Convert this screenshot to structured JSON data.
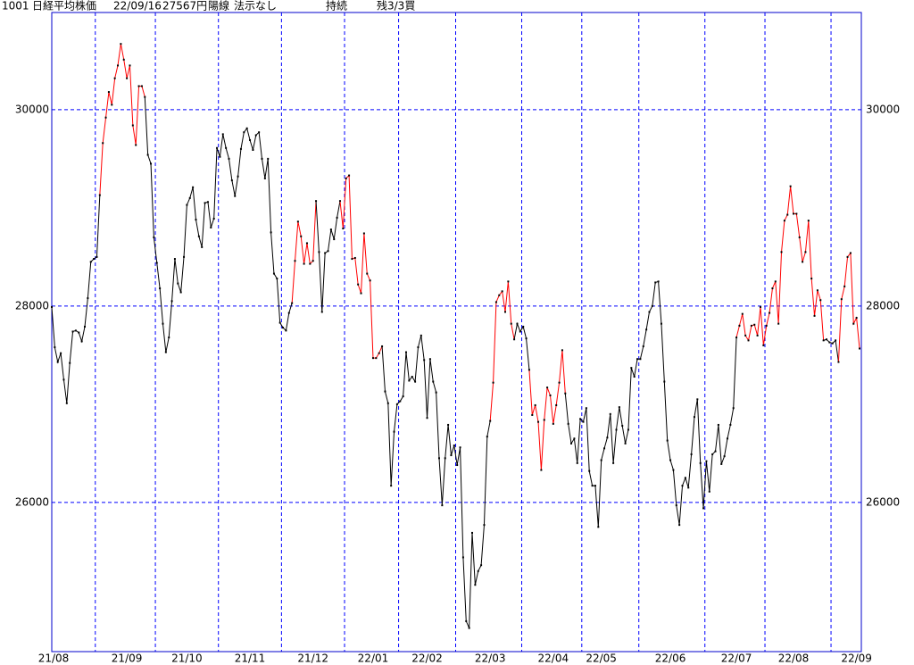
{
  "chart_data": {
    "type": "line",
    "header": [
      "1001",
      "日経平均株価",
      "22/09/16",
      "27567円",
      "陽線",
      "法示なし",
      "持続",
      "残3/3買"
    ],
    "values": [
      27990,
      27580,
      27430,
      27520,
      27250,
      27010,
      27420,
      27740,
      27750,
      27730,
      27640,
      27790,
      28080,
      28450,
      28480,
      28500,
      29130,
      29660,
      29920,
      30180,
      30050,
      30320,
      30450,
      30670,
      30510,
      30320,
      30450,
      29840,
      29640,
      30240,
      30240,
      30130,
      29540,
      29450,
      28700,
      28440,
      28180,
      27820,
      27530,
      27680,
      28050,
      28480,
      28230,
      28140,
      28500,
      29030,
      29100,
      29210,
      28880,
      28710,
      28600,
      29050,
      29060,
      28800,
      28890,
      29610,
      29520,
      29750,
      29610,
      29500,
      29280,
      29120,
      29320,
      29600,
      29770,
      29810,
      29690,
      29590,
      29740,
      29770,
      29500,
      29300,
      29500,
      28750,
      28330,
      28280,
      27830,
      27780,
      27750,
      27930,
      28030,
      28460,
      28860,
      28710,
      28430,
      28640,
      28430,
      28460,
      29070,
      28550,
      27940,
      28540,
      28560,
      28780,
      28680,
      28900,
      29070,
      28790,
      29300,
      29330,
      28480,
      28490,
      28220,
      28130,
      28740,
      28330,
      28260,
      27470,
      27470,
      27520,
      27590,
      27130,
      27010,
      26170,
      26720,
      27000,
      27030,
      27080,
      27530,
      27240,
      27280,
      27230,
      27580,
      27700,
      27450,
      26860,
      27460,
      27230,
      27120,
      26450,
      25970,
      26450,
      26790,
      26480,
      26580,
      26380,
      26560,
      25440,
      24790,
      24720,
      25690,
      25160,
      25300,
      25360,
      25770,
      26670,
      26830,
      27220,
      28040,
      28110,
      28150,
      27940,
      28250,
      27820,
      27660,
      27820,
      27740,
      27790,
      27670,
      27350,
      26890,
      26990,
      26820,
      26330,
      26840,
      27170,
      27090,
      26800,
      26990,
      27220,
      27550,
      27110,
      26800,
      26600,
      26650,
      26400,
      26850,
      26820,
      26960,
      26320,
      26170,
      26170,
      25750,
      26430,
      26550,
      26660,
      26900,
      26400,
      26740,
      26970,
      26780,
      26600,
      26740,
      27370,
      27280,
      27460,
      27460,
      27590,
      27760,
      27940,
      28000,
      28240,
      28250,
      27820,
      27230,
      26630,
      26430,
      26330,
      25970,
      25770,
      26170,
      26250,
      26150,
      26490,
      26870,
      27050,
      26400,
      25940,
      26420,
      26110,
      26490,
      26520,
      26790,
      26390,
      26470,
      26650,
      26790,
      26960,
      27680,
      27800,
      27920,
      27700,
      27650,
      27800,
      27810,
      27700,
      27990,
      27600,
      27800,
      27930,
      28180,
      28250,
      27820,
      28550,
      28870,
      28930,
      29220,
      28940,
      28940,
      28700,
      28450,
      28550,
      28870,
      28280,
      27900,
      28160,
      28060,
      27650,
      27660,
      27630,
      27620,
      27650,
      27430,
      28070,
      28200,
      28500,
      28540,
      27820,
      27880,
      27567
    ],
    "color": "#000000",
    "highlight_color": "#ff0000",
    "highlight_ranges": [
      [
        16,
        31
      ],
      [
        80,
        88
      ],
      [
        96,
        110
      ],
      [
        146,
        154
      ],
      [
        159,
        171
      ],
      [
        228,
        257
      ],
      [
        262,
        269
      ]
    ],
    "month_starts": [
      15,
      35,
      56,
      77,
      98,
      116,
      135,
      157,
      177,
      196,
      218,
      238,
      260
    ],
    "xticks": [
      {
        "value": 0,
        "label": "21/08"
      },
      {
        "value": 25,
        "label": "21/09"
      },
      {
        "value": 45,
        "label": "21/10"
      },
      {
        "value": 66,
        "label": "21/11"
      },
      {
        "value": 87,
        "label": "21/12"
      },
      {
        "value": 107,
        "label": "22/01"
      },
      {
        "value": 125,
        "label": "22/02"
      },
      {
        "value": 146,
        "label": "22/03"
      },
      {
        "value": 167,
        "label": "22/04"
      },
      {
        "value": 183,
        "label": "22/05"
      },
      {
        "value": 206,
        "label": "22/06"
      },
      {
        "value": 228,
        "label": "22/07"
      },
      {
        "value": 247,
        "label": "22/08"
      },
      {
        "value": 268,
        "label": "22/09"
      }
    ],
    "ylim": [
      24480,
      30990
    ],
    "yticks": [
      26000,
      28000,
      30000
    ],
    "grid": true,
    "grid_color": "#0000ff"
  }
}
